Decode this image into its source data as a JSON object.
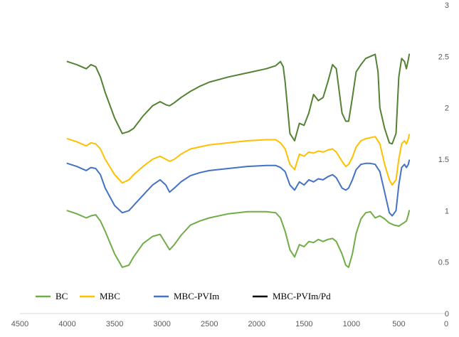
{
  "chart_data": {
    "type": "line",
    "title": "",
    "xlabel": "",
    "ylabel": "",
    "xlim": [
      4500,
      0
    ],
    "x_reversed": true,
    "ylim": [
      0,
      3
    ],
    "y_axis_side": "right",
    "grid": false,
    "legend_placement": "bottom-left",
    "x_ticks": [
      "4500",
      "4000",
      "3500",
      "3000",
      "2500",
      "2000",
      "1500",
      "1000",
      "500",
      "0"
    ],
    "y_ticks": [
      "0",
      "0.5",
      "1",
      "1.5",
      "2",
      "2.5",
      "3"
    ],
    "series": [
      {
        "name": "BC",
        "color": "#70ad47",
        "points": [
          [
            4000,
            1.0
          ],
          [
            3900,
            0.97
          ],
          [
            3800,
            0.93
          ],
          [
            3750,
            0.95
          ],
          [
            3700,
            0.96
          ],
          [
            3650,
            0.9
          ],
          [
            3600,
            0.8
          ],
          [
            3500,
            0.58
          ],
          [
            3420,
            0.45
          ],
          [
            3350,
            0.47
          ],
          [
            3300,
            0.55
          ],
          [
            3200,
            0.68
          ],
          [
            3100,
            0.75
          ],
          [
            3020,
            0.77
          ],
          [
            2960,
            0.68
          ],
          [
            2920,
            0.62
          ],
          [
            2870,
            0.67
          ],
          [
            2800,
            0.76
          ],
          [
            2700,
            0.86
          ],
          [
            2600,
            0.9
          ],
          [
            2500,
            0.93
          ],
          [
            2300,
            0.97
          ],
          [
            2100,
            0.99
          ],
          [
            1900,
            0.99
          ],
          [
            1800,
            0.98
          ],
          [
            1750,
            0.93
          ],
          [
            1700,
            0.8
          ],
          [
            1650,
            0.62
          ],
          [
            1600,
            0.55
          ],
          [
            1550,
            0.67
          ],
          [
            1500,
            0.65
          ],
          [
            1450,
            0.7
          ],
          [
            1400,
            0.69
          ],
          [
            1350,
            0.72
          ],
          [
            1300,
            0.7
          ],
          [
            1250,
            0.72
          ],
          [
            1200,
            0.73
          ],
          [
            1160,
            0.7
          ],
          [
            1100,
            0.58
          ],
          [
            1060,
            0.47
          ],
          [
            1030,
            0.45
          ],
          [
            990,
            0.58
          ],
          [
            950,
            0.78
          ],
          [
            900,
            0.92
          ],
          [
            850,
            0.98
          ],
          [
            800,
            0.99
          ],
          [
            750,
            0.93
          ],
          [
            700,
            0.95
          ],
          [
            650,
            0.92
          ],
          [
            600,
            0.88
          ],
          [
            550,
            0.86
          ],
          [
            500,
            0.85
          ],
          [
            450,
            0.88
          ],
          [
            420,
            0.9
          ],
          [
            400,
            0.96
          ],
          [
            390,
            1.0
          ]
        ]
      },
      {
        "name": "MBC",
        "color": "#ffc000",
        "points": [
          [
            4000,
            1.7
          ],
          [
            3900,
            1.67
          ],
          [
            3800,
            1.63
          ],
          [
            3750,
            1.66
          ],
          [
            3700,
            1.65
          ],
          [
            3650,
            1.6
          ],
          [
            3600,
            1.5
          ],
          [
            3500,
            1.35
          ],
          [
            3420,
            1.27
          ],
          [
            3350,
            1.3
          ],
          [
            3300,
            1.35
          ],
          [
            3200,
            1.43
          ],
          [
            3100,
            1.5
          ],
          [
            3020,
            1.53
          ],
          [
            2960,
            1.5
          ],
          [
            2920,
            1.48
          ],
          [
            2870,
            1.5
          ],
          [
            2800,
            1.55
          ],
          [
            2700,
            1.6
          ],
          [
            2600,
            1.62
          ],
          [
            2500,
            1.64
          ],
          [
            2300,
            1.66
          ],
          [
            2100,
            1.68
          ],
          [
            1900,
            1.69
          ],
          [
            1800,
            1.69
          ],
          [
            1750,
            1.66
          ],
          [
            1700,
            1.6
          ],
          [
            1650,
            1.45
          ],
          [
            1600,
            1.4
          ],
          [
            1550,
            1.55
          ],
          [
            1500,
            1.53
          ],
          [
            1450,
            1.57
          ],
          [
            1400,
            1.56
          ],
          [
            1350,
            1.58
          ],
          [
            1300,
            1.57
          ],
          [
            1250,
            1.59
          ],
          [
            1200,
            1.6
          ],
          [
            1160,
            1.57
          ],
          [
            1100,
            1.48
          ],
          [
            1060,
            1.43
          ],
          [
            1030,
            1.45
          ],
          [
            990,
            1.52
          ],
          [
            950,
            1.62
          ],
          [
            900,
            1.68
          ],
          [
            850,
            1.7
          ],
          [
            800,
            1.71
          ],
          [
            750,
            1.72
          ],
          [
            700,
            1.65
          ],
          [
            650,
            1.45
          ],
          [
            600,
            1.3
          ],
          [
            570,
            1.25
          ],
          [
            530,
            1.3
          ],
          [
            500,
            1.5
          ],
          [
            470,
            1.65
          ],
          [
            440,
            1.68
          ],
          [
            420,
            1.65
          ],
          [
            400,
            1.7
          ],
          [
            390,
            1.74
          ]
        ]
      },
      {
        "name": "MBC-PVIm",
        "color": "#4472c4",
        "points": [
          [
            4000,
            1.46
          ],
          [
            3900,
            1.43
          ],
          [
            3800,
            1.39
          ],
          [
            3750,
            1.42
          ],
          [
            3700,
            1.41
          ],
          [
            3650,
            1.35
          ],
          [
            3600,
            1.22
          ],
          [
            3500,
            1.05
          ],
          [
            3420,
            0.98
          ],
          [
            3350,
            1.0
          ],
          [
            3300,
            1.05
          ],
          [
            3200,
            1.15
          ],
          [
            3100,
            1.25
          ],
          [
            3020,
            1.3
          ],
          [
            2960,
            1.25
          ],
          [
            2920,
            1.18
          ],
          [
            2870,
            1.22
          ],
          [
            2800,
            1.28
          ],
          [
            2700,
            1.34
          ],
          [
            2600,
            1.37
          ],
          [
            2500,
            1.39
          ],
          [
            2300,
            1.41
          ],
          [
            2100,
            1.43
          ],
          [
            1900,
            1.44
          ],
          [
            1800,
            1.44
          ],
          [
            1750,
            1.42
          ],
          [
            1700,
            1.38
          ],
          [
            1650,
            1.25
          ],
          [
            1600,
            1.2
          ],
          [
            1550,
            1.28
          ],
          [
            1500,
            1.25
          ],
          [
            1450,
            1.3
          ],
          [
            1400,
            1.28
          ],
          [
            1350,
            1.31
          ],
          [
            1300,
            1.3
          ],
          [
            1250,
            1.33
          ],
          [
            1200,
            1.35
          ],
          [
            1160,
            1.32
          ],
          [
            1100,
            1.22
          ],
          [
            1060,
            1.2
          ],
          [
            1030,
            1.22
          ],
          [
            990,
            1.3
          ],
          [
            950,
            1.4
          ],
          [
            900,
            1.45
          ],
          [
            850,
            1.46
          ],
          [
            800,
            1.46
          ],
          [
            750,
            1.45
          ],
          [
            700,
            1.38
          ],
          [
            650,
            1.18
          ],
          [
            600,
            0.98
          ],
          [
            570,
            0.95
          ],
          [
            530,
            1.0
          ],
          [
            500,
            1.25
          ],
          [
            470,
            1.42
          ],
          [
            440,
            1.45
          ],
          [
            420,
            1.42
          ],
          [
            400,
            1.45
          ],
          [
            390,
            1.49
          ]
        ]
      },
      {
        "name": "MBC-PVIm/Pd",
        "color": "#000000",
        "points": []
      },
      {
        "name": "",
        "color": "#548235",
        "points": [
          [
            4000,
            2.45
          ],
          [
            3900,
            2.42
          ],
          [
            3800,
            2.38
          ],
          [
            3750,
            2.42
          ],
          [
            3700,
            2.4
          ],
          [
            3650,
            2.3
          ],
          [
            3600,
            2.15
          ],
          [
            3500,
            1.9
          ],
          [
            3420,
            1.75
          ],
          [
            3350,
            1.77
          ],
          [
            3300,
            1.8
          ],
          [
            3200,
            1.92
          ],
          [
            3100,
            2.02
          ],
          [
            3020,
            2.06
          ],
          [
            2960,
            2.03
          ],
          [
            2920,
            2.02
          ],
          [
            2870,
            2.05
          ],
          [
            2800,
            2.1
          ],
          [
            2700,
            2.16
          ],
          [
            2600,
            2.21
          ],
          [
            2500,
            2.25
          ],
          [
            2300,
            2.3
          ],
          [
            2100,
            2.34
          ],
          [
            1900,
            2.38
          ],
          [
            1800,
            2.41
          ],
          [
            1750,
            2.45
          ],
          [
            1720,
            2.4
          ],
          [
            1700,
            2.25
          ],
          [
            1650,
            1.75
          ],
          [
            1600,
            1.68
          ],
          [
            1550,
            1.85
          ],
          [
            1500,
            1.83
          ],
          [
            1450,
            1.95
          ],
          [
            1400,
            2.13
          ],
          [
            1350,
            2.07
          ],
          [
            1300,
            2.1
          ],
          [
            1250,
            2.25
          ],
          [
            1200,
            2.42
          ],
          [
            1160,
            2.38
          ],
          [
            1100,
            1.95
          ],
          [
            1060,
            1.87
          ],
          [
            1030,
            1.87
          ],
          [
            990,
            2.1
          ],
          [
            950,
            2.35
          ],
          [
            900,
            2.42
          ],
          [
            850,
            2.48
          ],
          [
            800,
            2.5
          ],
          [
            750,
            2.52
          ],
          [
            720,
            2.35
          ],
          [
            700,
            2.0
          ],
          [
            650,
            1.8
          ],
          [
            600,
            1.66
          ],
          [
            570,
            1.65
          ],
          [
            530,
            1.75
          ],
          [
            500,
            2.3
          ],
          [
            470,
            2.48
          ],
          [
            440,
            2.45
          ],
          [
            420,
            2.38
          ],
          [
            400,
            2.47
          ],
          [
            390,
            2.52
          ]
        ]
      }
    ]
  }
}
